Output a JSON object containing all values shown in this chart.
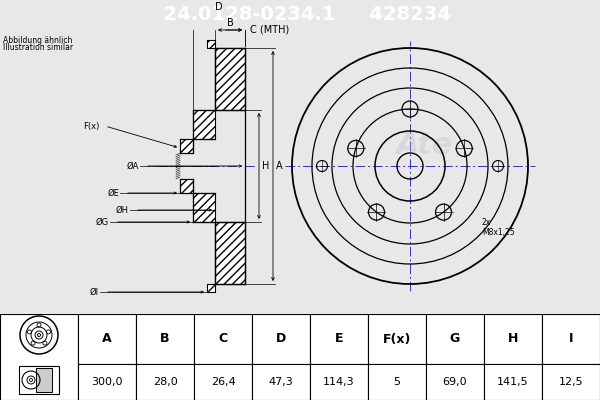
{
  "title_part_number": "24.0128-0234.1",
  "title_ref_number": "428234",
  "title_bg": "#1a1aff",
  "title_fg": "#ffffff",
  "subtitle_line1": "Abbildung ähnlich",
  "subtitle_line2": "Illustration similar",
  "note_thread": "2x\nM8x1,25",
  "table_headers": [
    "A",
    "B",
    "C",
    "D",
    "E",
    "F(x)",
    "G",
    "H",
    "I"
  ],
  "table_values": [
    "300,0",
    "28,0",
    "26,4",
    "47,3",
    "114,3",
    "5",
    "69,0",
    "141,5",
    "12,5"
  ],
  "bg_color": "#e8e8e8",
  "drawing_bg": "#e8e8e8",
  "line_color": "#000000",
  "table_bg": "#ffffff"
}
